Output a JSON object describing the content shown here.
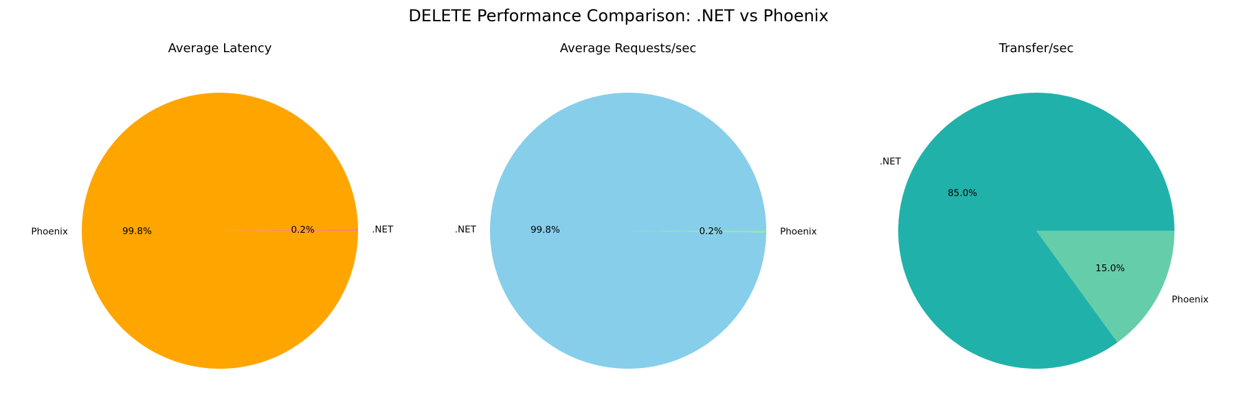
{
  "figure": {
    "title": "DELETE Performance Comparison: .NET vs Phoenix"
  },
  "chart_data": [
    {
      "type": "pie",
      "title": "Average Latency",
      "labels": [
        ".NET",
        "Phoenix"
      ],
      "values": [
        0.2,
        99.8
      ],
      "percent_labels": [
        "0.2%",
        "99.8%"
      ],
      "colors": [
        "#ff7f7f",
        "#ffa500"
      ],
      "start_angle": 0,
      "direction": "counterclockwise"
    },
    {
      "type": "pie",
      "title": "Average Requests/sec",
      "labels": [
        ".NET",
        "Phoenix"
      ],
      "values": [
        99.8,
        0.2
      ],
      "percent_labels": [
        "99.8%",
        "0.2%"
      ],
      "colors": [
        "#87ceeb",
        "#90ee90"
      ],
      "start_angle": 0,
      "direction": "counterclockwise"
    },
    {
      "type": "pie",
      "title": "Transfer/sec",
      "labels": [
        ".NET",
        "Phoenix"
      ],
      "values": [
        85.0,
        15.0
      ],
      "percent_labels": [
        "85.0%",
        "15.0%"
      ],
      "colors": [
        "#20b2aa",
        "#66cdaa"
      ],
      "start_angle": 0,
      "direction": "counterclockwise"
    }
  ]
}
